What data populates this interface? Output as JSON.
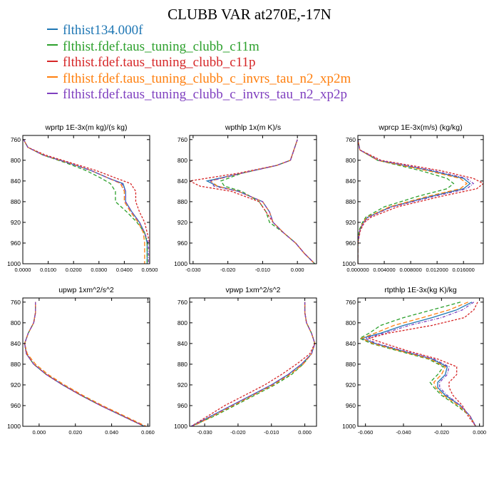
{
  "title": "CLUBB VAR at270E,-17N",
  "legend": [
    {
      "label": "flthist134.000f",
      "color": "#1f77b4"
    },
    {
      "label": "flthist.fdef.taus_tuning_clubb_c11m",
      "color": "#2ca02c"
    },
    {
      "label": "flthist.fdef.taus_tuning_clubb_c11p",
      "color": "#d62728"
    },
    {
      "label": "flthist.fdef.taus_tuning_clubb_c_invrs_tau_n2_xp2m",
      "color": "#ff7f0e"
    },
    {
      "label": "flthist.fdef.taus_tuning_clubb_c_invrs_tau_n2_xp2p",
      "color": "#7f3fbf"
    }
  ],
  "chart_data": [
    {
      "type": "line",
      "title": "wprtp  1E-3x(m kg)/(s kg)",
      "xlim": [
        0.0,
        0.05
      ],
      "ylim": [
        1000,
        752
      ],
      "y_reversed": true,
      "xticks": [
        0.0,
        0.01,
        0.02,
        0.03,
        0.04,
        0.05
      ],
      "xtick_labels": [
        "0.0000",
        "0.0100",
        "0.0200",
        "0.0300",
        "0.0400",
        "0.0500"
      ],
      "yticks": [
        760,
        800,
        840,
        880,
        920,
        960,
        1000
      ],
      "y": [
        760,
        775,
        790,
        805,
        820,
        835,
        845,
        860,
        880,
        900,
        920,
        940,
        960,
        980,
        1000
      ],
      "series": [
        {
          "name": "flthist134.000f",
          "x": [
            0.0003,
            0.002,
            0.008,
            0.018,
            0.027,
            0.034,
            0.0395,
            0.0405,
            0.0405,
            0.043,
            0.046,
            0.048,
            0.049,
            0.049,
            0.049
          ]
        },
        {
          "name": "flthist.fdef.taus_tuning_clubb_c11m",
          "x": [
            0.0003,
            0.002,
            0.008,
            0.017,
            0.025,
            0.031,
            0.0345,
            0.0365,
            0.0365,
            0.041,
            0.045,
            0.048,
            0.049,
            0.049,
            0.049
          ]
        },
        {
          "name": "flthist.fdef.taus_tuning_clubb_c11p",
          "x": [
            0.0003,
            0.002,
            0.009,
            0.019,
            0.029,
            0.037,
            0.0425,
            0.0445,
            0.0445,
            0.046,
            0.048,
            0.049,
            0.05,
            0.05,
            0.05
          ]
        },
        {
          "name": "flthist.fdef.taus_tuning_clubb_c_invrs_tau_n2_xp2m",
          "x": [
            0.0003,
            0.002,
            0.008,
            0.018,
            0.027,
            0.034,
            0.0385,
            0.04,
            0.04,
            0.0425,
            0.0455,
            0.0475,
            0.048,
            0.048,
            0.048
          ]
        },
        {
          "name": "flthist.fdef.taus_tuning_clubb_c_invrs_tau_n2_xp2p",
          "x": [
            0.0003,
            0.002,
            0.008,
            0.018,
            0.027,
            0.034,
            0.039,
            0.0405,
            0.0405,
            0.043,
            0.046,
            0.048,
            0.0495,
            0.0495,
            0.0495
          ]
        }
      ]
    },
    {
      "type": "line",
      "title": "wpthlp  1x(m K)/s",
      "xlim": [
        -0.031,
        0.0055
      ],
      "ylim": [
        1000,
        752
      ],
      "y_reversed": true,
      "xticks": [
        -0.03,
        -0.02,
        -0.01,
        0.0
      ],
      "xtick_labels": [
        "-0.030",
        "-0.020",
        "-0.010",
        "0.000"
      ],
      "yticks": [
        760,
        800,
        840,
        880,
        920,
        960,
        1000
      ],
      "y": [
        760,
        780,
        800,
        810,
        825,
        840,
        850,
        860,
        880,
        900,
        920,
        940,
        960,
        980,
        1000
      ],
      "series": [
        {
          "name": "flthist134.000f",
          "x": [
            0.0,
            -0.001,
            -0.002,
            -0.006,
            -0.016,
            -0.026,
            -0.023,
            -0.017,
            -0.01,
            -0.008,
            -0.007,
            -0.004,
            -0.0005,
            0.002,
            0.005
          ]
        },
        {
          "name": "flthist.fdef.taus_tuning_clubb_c11m",
          "x": [
            0.0,
            -0.001,
            -0.002,
            -0.006,
            -0.016,
            -0.022,
            -0.021,
            -0.016,
            -0.011,
            -0.009,
            -0.008,
            -0.004,
            -0.0005,
            0.002,
            0.005
          ]
        },
        {
          "name": "flthist.fdef.taus_tuning_clubb_c11p",
          "x": [
            0.0,
            -0.001,
            -0.002,
            -0.006,
            -0.017,
            -0.031,
            -0.028,
            -0.019,
            -0.011,
            -0.009,
            -0.007,
            -0.004,
            -0.0005,
            0.002,
            0.005
          ]
        },
        {
          "name": "flthist.fdef.taus_tuning_clubb_c_invrs_tau_n2_xp2m",
          "x": [
            0.0,
            -0.001,
            -0.002,
            -0.006,
            -0.016,
            -0.025,
            -0.023,
            -0.017,
            -0.01,
            -0.008,
            -0.007,
            -0.004,
            -0.0005,
            0.002,
            0.005
          ]
        },
        {
          "name": "flthist.fdef.taus_tuning_clubb_c_invrs_tau_n2_xp2p",
          "x": [
            0.0,
            -0.001,
            -0.002,
            -0.006,
            -0.016,
            -0.025,
            -0.024,
            -0.017,
            -0.01,
            -0.008,
            -0.007,
            -0.004,
            -0.0005,
            0.002,
            0.005
          ]
        }
      ]
    },
    {
      "type": "line",
      "title": "wprcp  1E-3x(m/s) (kg/kg)",
      "xlim": [
        0.0,
        0.019
      ],
      "ylim": [
        1000,
        752
      ],
      "y_reversed": true,
      "xticks": [
        0.0,
        0.004,
        0.008,
        0.012,
        0.016
      ],
      "xtick_labels": [
        "0.000000",
        "0.004000",
        "0.008000",
        "0.012000",
        "0.016000"
      ],
      "yticks": [
        760,
        800,
        840,
        880,
        920,
        960,
        1000
      ],
      "y": [
        760,
        780,
        800,
        820,
        835,
        845,
        855,
        870,
        890,
        910,
        920,
        935,
        960,
        1000
      ],
      "series": [
        {
          "name": "flthist134.000f",
          "x": [
            0.0,
            0.0003,
            0.003,
            0.011,
            0.016,
            0.017,
            0.016,
            0.011,
            0.005,
            0.0015,
            0.0008,
            0.0003,
            0.0,
            0.0
          ]
        },
        {
          "name": "flthist.fdef.taus_tuning_clubb_c11m",
          "x": [
            0.0,
            0.0003,
            0.003,
            0.0095,
            0.0135,
            0.0145,
            0.0135,
            0.009,
            0.004,
            0.0012,
            0.0007,
            0.0002,
            0.0,
            0.0
          ]
        },
        {
          "name": "flthist.fdef.taus_tuning_clubb_c11p",
          "x": [
            0.0,
            0.0003,
            0.0035,
            0.0125,
            0.0175,
            0.019,
            0.018,
            0.0125,
            0.006,
            0.002,
            0.001,
            0.0004,
            0.0,
            0.0
          ]
        },
        {
          "name": "flthist.fdef.taus_tuning_clubb_c_invrs_tau_n2_xp2m",
          "x": [
            0.0,
            0.0003,
            0.003,
            0.0105,
            0.0155,
            0.0165,
            0.0155,
            0.0105,
            0.0048,
            0.0014,
            0.0008,
            0.0003,
            0.0,
            0.0
          ]
        },
        {
          "name": "flthist.fdef.taus_tuning_clubb_c_invrs_tau_n2_xp2p",
          "x": [
            0.0,
            0.0003,
            0.0032,
            0.0115,
            0.0165,
            0.0175,
            0.0165,
            0.0115,
            0.0052,
            0.0016,
            0.0009,
            0.0003,
            0.0,
            0.0
          ]
        }
      ]
    },
    {
      "type": "line",
      "title": "upwp  1xm^2/s^2",
      "xlim": [
        -0.009,
        0.061
      ],
      "ylim": [
        1000,
        752
      ],
      "y_reversed": true,
      "xticks": [
        0.0,
        0.02,
        0.04,
        0.06
      ],
      "xtick_labels": [
        "0.000",
        "0.020",
        "0.040",
        "0.060"
      ],
      "yticks": [
        760,
        800,
        840,
        880,
        920,
        960,
        1000
      ],
      "y": [
        760,
        780,
        800,
        820,
        840,
        860,
        880,
        900,
        920,
        940,
        960,
        980,
        1000
      ],
      "series": [
        {
          "name": "flthist134.000f",
          "x": [
            -0.002,
            -0.002,
            -0.003,
            -0.006,
            -0.008,
            -0.007,
            -0.003,
            0.004,
            0.013,
            0.023,
            0.034,
            0.046,
            0.058
          ]
        },
        {
          "name": "flthist.fdef.taus_tuning_clubb_c11m",
          "x": [
            -0.002,
            -0.002,
            -0.003,
            -0.006,
            -0.008,
            -0.007,
            -0.003,
            0.004,
            0.013,
            0.023,
            0.034,
            0.046,
            0.058
          ]
        },
        {
          "name": "flthist.fdef.taus_tuning_clubb_c11p",
          "x": [
            -0.002,
            -0.002,
            -0.003,
            -0.006,
            -0.008,
            -0.007,
            -0.003,
            0.004,
            0.013,
            0.023,
            0.034,
            0.046,
            0.058
          ]
        },
        {
          "name": "flthist.fdef.taus_tuning_clubb_c_invrs_tau_n2_xp2m",
          "x": [
            -0.002,
            -0.002,
            -0.003,
            -0.006,
            -0.008,
            -0.0065,
            -0.002,
            0.005,
            0.014,
            0.024,
            0.035,
            0.047,
            0.059
          ]
        },
        {
          "name": "flthist.fdef.taus_tuning_clubb_c_invrs_tau_n2_xp2p",
          "x": [
            -0.002,
            -0.002,
            -0.003,
            -0.006,
            -0.008,
            -0.007,
            -0.003,
            0.004,
            0.013,
            0.023,
            0.034,
            0.046,
            0.058
          ]
        }
      ]
    },
    {
      "type": "line",
      "title": "vpwp  1xm^2/s^2",
      "xlim": [
        -0.0345,
        0.0035
      ],
      "ylim": [
        1000,
        752
      ],
      "y_reversed": true,
      "xticks": [
        -0.03,
        -0.02,
        -0.01,
        0.0
      ],
      "xtick_labels": [
        "-0.030",
        "-0.020",
        "-0.010",
        "0.000"
      ],
      "yticks": [
        760,
        800,
        840,
        880,
        920,
        960,
        1000
      ],
      "y": [
        760,
        780,
        800,
        820,
        840,
        860,
        880,
        900,
        920,
        940,
        960,
        980,
        1000
      ],
      "series": [
        {
          "name": "flthist134.000f",
          "x": [
            0.0,
            0.0,
            0.0005,
            0.002,
            0.003,
            0.002,
            -0.001,
            -0.005,
            -0.01,
            -0.016,
            -0.022,
            -0.028,
            -0.034
          ]
        },
        {
          "name": "flthist.fdef.taus_tuning_clubb_c11m",
          "x": [
            0.0,
            0.0,
            0.0005,
            0.002,
            0.003,
            0.002,
            -0.0005,
            -0.004,
            -0.009,
            -0.015,
            -0.021,
            -0.027,
            -0.034
          ]
        },
        {
          "name": "flthist.fdef.taus_tuning_clubb_c11p",
          "x": [
            0.0,
            0.0,
            0.0005,
            0.002,
            0.003,
            0.0015,
            -0.0025,
            -0.007,
            -0.012,
            -0.018,
            -0.024,
            -0.029,
            -0.034
          ]
        },
        {
          "name": "flthist.fdef.taus_tuning_clubb_c_invrs_tau_n2_xp2m",
          "x": [
            0.0,
            0.0,
            0.0005,
            0.002,
            0.003,
            0.002,
            -0.0005,
            -0.0045,
            -0.0095,
            -0.0155,
            -0.0215,
            -0.0275,
            -0.0335
          ]
        },
        {
          "name": "flthist.fdef.taus_tuning_clubb_c_invrs_tau_n2_xp2p",
          "x": [
            0.0,
            0.0,
            0.0005,
            0.002,
            0.003,
            0.002,
            -0.001,
            -0.005,
            -0.01,
            -0.016,
            -0.022,
            -0.028,
            -0.034
          ]
        }
      ]
    },
    {
      "type": "line",
      "title": "rtpthlp  1E-3x(kg K)/kg",
      "xlim": [
        -0.064,
        0.002
      ],
      "ylim": [
        1000,
        752
      ],
      "y_reversed": true,
      "xticks": [
        -0.06,
        -0.04,
        -0.02,
        0.0
      ],
      "xtick_labels": [
        "-0.060",
        "-0.040",
        "-0.020",
        "0.000"
      ],
      "yticks": [
        760,
        800,
        840,
        880,
        920,
        960,
        1000
      ],
      "y": [
        760,
        775,
        790,
        805,
        820,
        830,
        840,
        855,
        870,
        885,
        900,
        915,
        925,
        940,
        960,
        980,
        1000
      ],
      "series": [
        {
          "name": "flthist134.000f",
          "x": [
            -0.004,
            -0.012,
            -0.025,
            -0.04,
            -0.052,
            -0.062,
            -0.055,
            -0.04,
            -0.025,
            -0.017,
            -0.018,
            -0.022,
            -0.022,
            -0.018,
            -0.01,
            -0.005,
            -0.002
          ]
        },
        {
          "name": "flthist.fdef.taus_tuning_clubb_c11m",
          "x": [
            -0.01,
            -0.025,
            -0.04,
            -0.052,
            -0.058,
            -0.063,
            -0.057,
            -0.042,
            -0.027,
            -0.019,
            -0.022,
            -0.026,
            -0.024,
            -0.02,
            -0.012,
            -0.005,
            -0.002
          ]
        },
        {
          "name": "flthist.fdef.taus_tuning_clubb_c11p",
          "x": [
            -0.001,
            -0.003,
            -0.008,
            -0.025,
            -0.048,
            -0.058,
            -0.05,
            -0.037,
            -0.022,
            -0.012,
            -0.012,
            -0.016,
            -0.016,
            -0.014,
            -0.009,
            -0.006,
            -0.002
          ]
        },
        {
          "name": "flthist.fdef.taus_tuning_clubb_c_invrs_tau_n2_xp2m",
          "x": [
            -0.006,
            -0.016,
            -0.03,
            -0.045,
            -0.055,
            -0.062,
            -0.056,
            -0.041,
            -0.026,
            -0.018,
            -0.02,
            -0.024,
            -0.023,
            -0.019,
            -0.011,
            -0.005,
            -0.002
          ]
        },
        {
          "name": "flthist.fdef.taus_tuning_clubb_c_invrs_tau_n2_xp2p",
          "x": [
            -0.003,
            -0.009,
            -0.02,
            -0.037,
            -0.05,
            -0.06,
            -0.054,
            -0.039,
            -0.024,
            -0.016,
            -0.017,
            -0.021,
            -0.021,
            -0.017,
            -0.01,
            -0.005,
            -0.002
          ]
        }
      ]
    }
  ]
}
